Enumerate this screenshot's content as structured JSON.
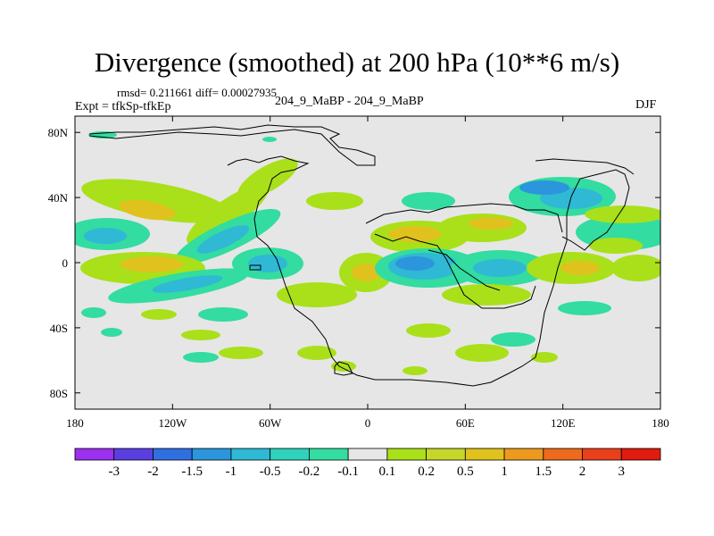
{
  "title": "Divergence (smoothed) at 200 hPa (10**6 m/s)",
  "stats": "rmsd= 0.211661 diff= 0.00027935",
  "experiment": "Expt = tfkSp-tfkEp",
  "case_label": "204_9_MaBP - 204_9_MaBP",
  "season": "DJF",
  "map": {
    "projection": "cylindrical equidistant",
    "lon_range": [
      -180,
      180
    ],
    "lat_range": [
      -90,
      90
    ],
    "x_ticks": [
      {
        "value": -180,
        "label": "180"
      },
      {
        "value": -120,
        "label": "120W"
      },
      {
        "value": -60,
        "label": "60W"
      },
      {
        "value": 0,
        "label": "0"
      },
      {
        "value": 60,
        "label": "60E"
      },
      {
        "value": 120,
        "label": "120E"
      },
      {
        "value": 180,
        "label": "180"
      }
    ],
    "y_ticks": [
      {
        "value": 80,
        "label": "80N"
      },
      {
        "value": 40,
        "label": "40N"
      },
      {
        "value": 0,
        "label": "0"
      },
      {
        "value": -40,
        "label": "40S"
      },
      {
        "value": -80,
        "label": "80S"
      }
    ],
    "background_color": "#e6e6e6"
  },
  "colorbar": {
    "levels": [
      "-3",
      "-2",
      "-1.5",
      "-1",
      "-0.5",
      "-0.2",
      "-0.1",
      "0.1",
      "0.2",
      "0.5",
      "1",
      "1.5",
      "2",
      "3"
    ],
    "colors": [
      "#9b30ef",
      "#5a3fe0",
      "#2f6fe0",
      "#2b96dc",
      "#2fb9d4",
      "#2fd3bc",
      "#33dca0",
      "#e6e6e6",
      "#a9e01a",
      "#c6d62a",
      "#e0c21e",
      "#ec9a1e",
      "#ee6a1c",
      "#e8401a",
      "#e01c10"
    ]
  }
}
